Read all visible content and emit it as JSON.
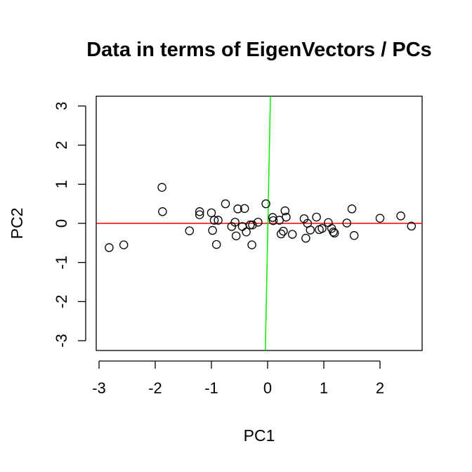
{
  "chart_data": {
    "type": "scatter",
    "title": "Data in terms of EigenVectors / PCs",
    "xlabel": "PC1",
    "ylabel": "PC2",
    "xlim": [
      -3.05,
      2.75
    ],
    "ylim": [
      -3.25,
      3.25
    ],
    "xticks": [
      -3,
      -2,
      -1,
      0,
      1,
      2
    ],
    "yticks": [
      -3,
      -2,
      -1,
      0,
      1,
      2,
      3
    ],
    "xtick_labels": [
      "-3",
      "-2",
      "-1",
      "0",
      "1",
      "2"
    ],
    "ytick_labels": [
      "-3",
      "-2",
      "-1",
      "0",
      "1",
      "2",
      "3"
    ],
    "grid": false,
    "point_style": "open-circle",
    "lines": [
      {
        "color": "#ff0000",
        "from": [
          -3.05,
          0.0
        ],
        "to": [
          2.75,
          0.0
        ]
      },
      {
        "color": "#00ee00",
        "from": [
          -0.04,
          -3.25
        ],
        "to": [
          0.05,
          3.25
        ]
      }
    ],
    "points": [
      [
        -2.82,
        -0.62
      ],
      [
        -2.56,
        -0.55
      ],
      [
        -1.88,
        0.92
      ],
      [
        -1.87,
        0.3
      ],
      [
        -1.39,
        -0.19
      ],
      [
        -1.21,
        0.3
      ],
      [
        -1.21,
        0.22
      ],
      [
        -1.0,
        0.27
      ],
      [
        -0.98,
        -0.18
      ],
      [
        -0.95,
        0.08
      ],
      [
        -0.91,
        -0.54
      ],
      [
        -0.88,
        0.08
      ],
      [
        -0.75,
        0.5
      ],
      [
        -0.64,
        -0.08
      ],
      [
        -0.58,
        0.03
      ],
      [
        -0.56,
        -0.32
      ],
      [
        -0.53,
        0.37
      ],
      [
        -0.45,
        -0.08
      ],
      [
        -0.41,
        0.38
      ],
      [
        -0.38,
        -0.22
      ],
      [
        -0.31,
        -0.04
      ],
      [
        -0.28,
        -0.55
      ],
      [
        -0.27,
        -0.04
      ],
      [
        -0.17,
        0.03
      ],
      [
        -0.03,
        0.5
      ],
      [
        0.09,
        0.15
      ],
      [
        0.1,
        0.07
      ],
      [
        0.21,
        0.08
      ],
      [
        0.24,
        -0.27
      ],
      [
        0.28,
        -0.2
      ],
      [
        0.31,
        0.32
      ],
      [
        0.33,
        0.16
      ],
      [
        0.44,
        -0.28
      ],
      [
        0.65,
        0.12
      ],
      [
        0.68,
        -0.38
      ],
      [
        0.71,
        0.0
      ],
      [
        0.76,
        -0.17
      ],
      [
        0.87,
        0.16
      ],
      [
        0.92,
        -0.16
      ],
      [
        0.97,
        -0.13
      ],
      [
        1.08,
        0.02
      ],
      [
        1.14,
        -0.13
      ],
      [
        1.17,
        -0.22
      ],
      [
        1.19,
        -0.25
      ],
      [
        1.41,
        0.01
      ],
      [
        1.5,
        0.37
      ],
      [
        1.54,
        -0.31
      ],
      [
        2.0,
        0.13
      ],
      [
        2.37,
        0.19
      ],
      [
        2.56,
        -0.07
      ]
    ]
  }
}
